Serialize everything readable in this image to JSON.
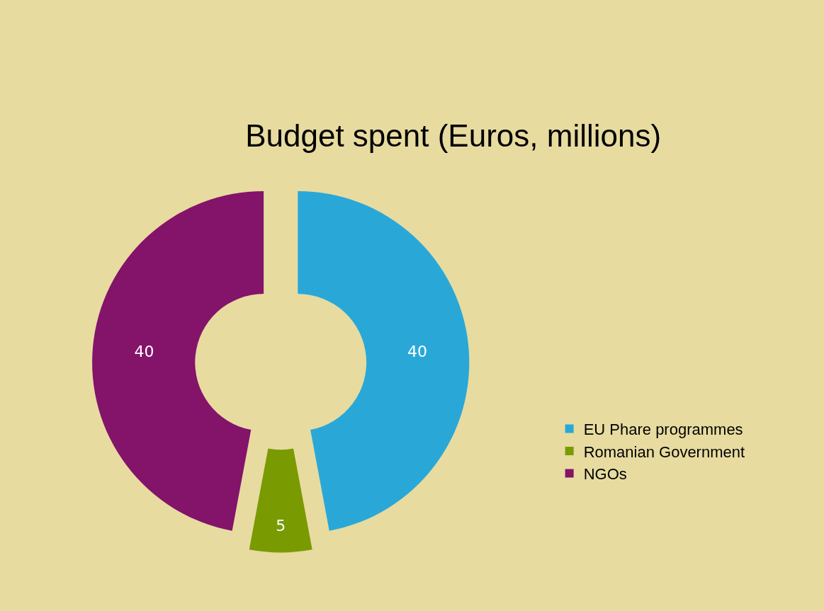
{
  "chart_data": {
    "type": "donut",
    "title": "Budget spent (Euros, millions)",
    "categories": [
      "EU Phare programmes",
      "Romanian Government",
      "NGOs"
    ],
    "values": [
      40,
      5,
      40
    ],
    "colors": [
      "#29a8d8",
      "#7a9a01",
      "#84136a"
    ],
    "data_labels": true,
    "legend": "bottom right"
  }
}
